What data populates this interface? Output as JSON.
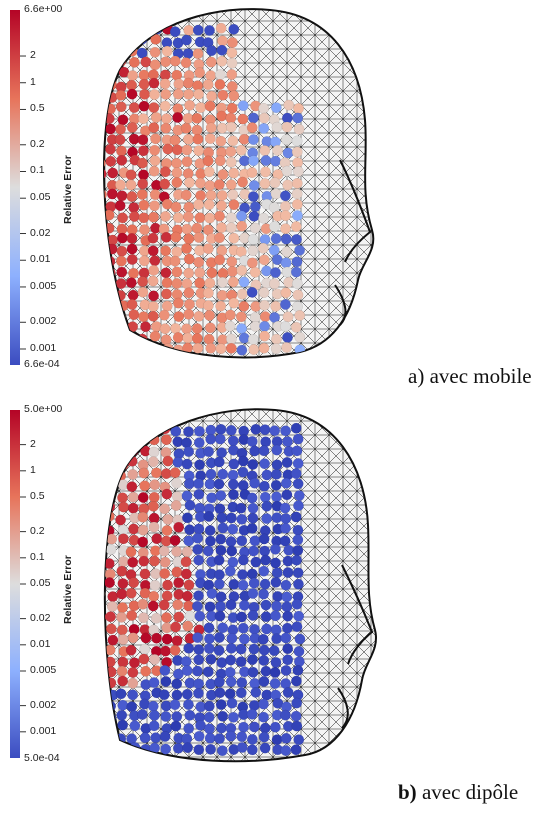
{
  "colorbar_title": "Relative Error",
  "panels": [
    {
      "id": "a",
      "colorbar_max": "6.6e+00",
      "colorbar_min": "6.6e-04",
      "ticks": [
        "2",
        "1",
        "0.5",
        "0.2",
        "0.1",
        "0.05",
        "0.02",
        "0.01",
        "0.005",
        "0.002",
        "0.001"
      ],
      "caption_prefix": "a)",
      "caption_text": " avec mobile"
    },
    {
      "id": "b",
      "colorbar_max": "5.0e+00",
      "colorbar_min": "5.0e-04",
      "ticks": [
        "2",
        "1",
        "0.5",
        "0.2",
        "0.1",
        "0.05",
        "0.02",
        "0.01",
        "0.005",
        "0.002",
        "0.001"
      ],
      "caption_prefix": "b)",
      "caption_text": " avec dipôle"
    }
  ],
  "colors": {
    "high": "#b40426",
    "mid": "#dddddd",
    "low": "#3b4cc0",
    "mesh": "#111111"
  }
}
